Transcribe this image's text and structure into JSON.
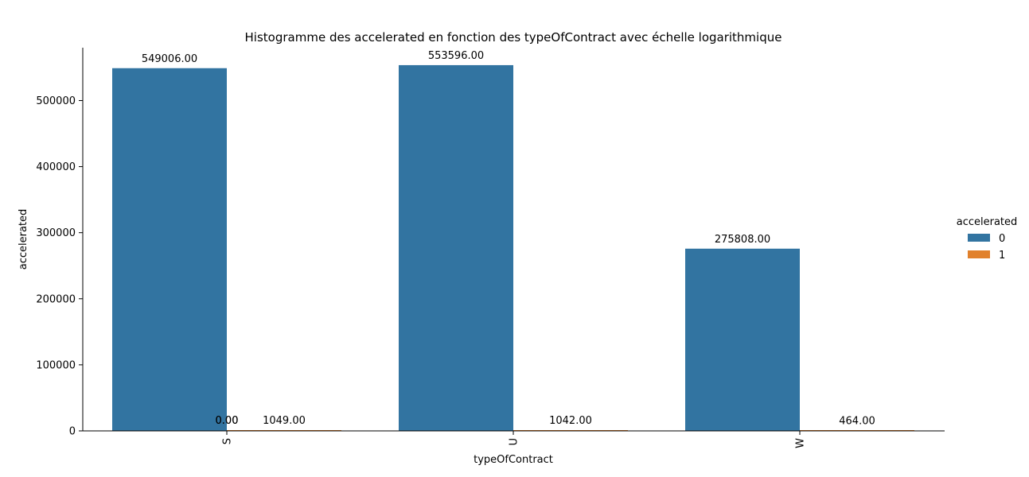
{
  "chart_data": {
    "type": "bar",
    "title": "Histogramme des accelerated en fonction des typeOfContract avec échelle logarithmique",
    "xlabel": "typeOfContract",
    "ylabel": "accelerated",
    "categories": [
      "S",
      "U",
      "W"
    ],
    "ylim": [
      0,
      580000
    ],
    "yticks": [
      0,
      100000,
      200000,
      300000,
      400000,
      500000
    ],
    "ytick_labels": [
      "0",
      "100000",
      "200000",
      "300000",
      "400000",
      "500000"
    ],
    "grid": false,
    "legend": {
      "title": "accelerated",
      "position": "right"
    },
    "series": [
      {
        "name": "0",
        "color": "#3274a1",
        "values": [
          549006,
          553596,
          275808
        ],
        "labels": [
          "549006.00",
          "553596.00",
          "275808.00"
        ]
      },
      {
        "name": "1",
        "color": "#e1812c",
        "values": [
          1049,
          1042,
          464
        ],
        "labels": [
          "1049.00",
          "1042.00",
          "464.00"
        ]
      }
    ],
    "extra_labels": [
      "0.00",
      "0.00"
    ]
  }
}
